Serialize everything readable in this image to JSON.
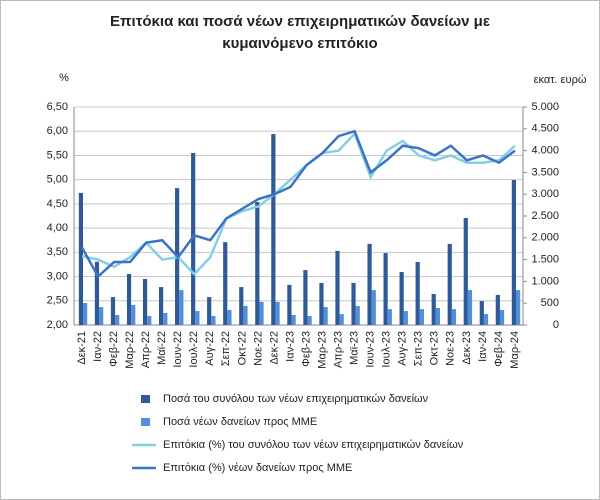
{
  "chart_data": {
    "type": "combo",
    "title": [
      "Επιτόκια και ποσά νέων επιχειρηματικών δανείων με",
      "κυμαινόμενο επιτόκιο"
    ],
    "y_label": "%",
    "y2_label": "εκατ. ευρώ",
    "categories": [
      "Δεκ-21",
      "Ιαν-22",
      "Φεβ-22",
      "Μαρ-22",
      "Απρ-22",
      "Μαϊ-22",
      "Ιουν-22",
      "Ιουλ-22",
      "Αυγ-22",
      "Σεπ-22",
      "Οκτ-22",
      "Νοε-22",
      "Δεκ-22",
      "Ιαν-23",
      "Φεβ-23",
      "Μαρ-23",
      "Απρ-23",
      "Μαϊ-23",
      "Ιουν-23",
      "Ιουλ-23",
      "Αυγ-23",
      "Σεπ-23",
      "Οκτ-23",
      "Νοε-23",
      "Δεκ-23",
      "Ιαν-24",
      "Φεβ-24",
      "Μαρ-24"
    ],
    "series": [
      {
        "name": "Ποσά του συνόλου των νέων επιχειρηματικών δανείων",
        "type": "bar",
        "axis": "y2",
        "color": "#2f5a96",
        "values": [
          3030,
          1450,
          640,
          1170,
          1055,
          870,
          3140,
          3945,
          640,
          1900,
          870,
          2820,
          4380,
          920,
          1260,
          965,
          1700,
          965,
          1860,
          1650,
          1215,
          1445,
          710,
          1860,
          2455,
          550,
          690,
          3325
        ]
      },
      {
        "name": "Ποσά νέων δανείων προς ΜΜΕ",
        "type": "bar",
        "axis": "y2",
        "color": "#4f8fdc",
        "values": [
          505,
          410,
          230,
          460,
          205,
          275,
          800,
          320,
          205,
          345,
          435,
          530,
          530,
          230,
          205,
          410,
          250,
          435,
          800,
          365,
          320,
          365,
          390,
          365,
          800,
          250,
          345,
          800
        ]
      },
      {
        "name": "Επιτόκια (%) του συνόλου των νέων επιχειρηματικών δανείων",
        "type": "line",
        "color": "#86cde8",
        "values": [
          3.42,
          3.35,
          3.2,
          3.4,
          3.7,
          3.35,
          3.4,
          3.05,
          3.4,
          4.2,
          4.35,
          4.45,
          4.7,
          5.0,
          5.3,
          5.55,
          5.6,
          5.95,
          5.05,
          5.6,
          5.8,
          5.5,
          5.4,
          5.5,
          5.35,
          5.35,
          5.4,
          5.7
        ]
      },
      {
        "name": "Επιτόκια (%) νέων δανείων προς ΜΜΕ",
        "type": "line",
        "color": "#3b74c2",
        "values": [
          3.6,
          3.0,
          3.3,
          3.3,
          3.7,
          3.75,
          3.4,
          3.85,
          3.75,
          4.2,
          4.4,
          4.6,
          4.7,
          4.85,
          5.3,
          5.55,
          5.9,
          6.0,
          5.15,
          5.4,
          5.7,
          5.65,
          5.5,
          5.7,
          5.4,
          5.5,
          5.35,
          5.6
        ]
      }
    ],
    "ylim": [
      2,
      6.5
    ],
    "yticks": [
      {
        "value": 2,
        "label": "2,00"
      },
      {
        "value": 2.5,
        "label": "2,50"
      },
      {
        "value": 3,
        "label": "3,00"
      },
      {
        "value": 3.5,
        "label": "3,50"
      },
      {
        "value": 4,
        "label": "4,00"
      },
      {
        "value": 4.5,
        "label": "4,50"
      },
      {
        "value": 5,
        "label": "5,00"
      },
      {
        "value": 5.5,
        "label": "5,50"
      },
      {
        "value": 6,
        "label": "6,00"
      },
      {
        "value": 6.5,
        "label": "6,50"
      }
    ],
    "y2lim": [
      0,
      5000
    ],
    "y2ticks": [
      0,
      500,
      {
        "value": 1000,
        "label": "1.000"
      },
      {
        "value": 1500,
        "label": "1.500"
      },
      {
        "value": 2000,
        "label": "2.000"
      },
      {
        "value": 2500,
        "label": "2.500"
      },
      {
        "value": 3000,
        "label": "3.000"
      },
      {
        "value": 3500,
        "label": "3.500"
      },
      {
        "value": 4000,
        "label": "4.000"
      },
      {
        "value": 4500,
        "label": "4.500"
      },
      {
        "value": 5000,
        "label": "5.000"
      }
    ],
    "grid": true
  }
}
